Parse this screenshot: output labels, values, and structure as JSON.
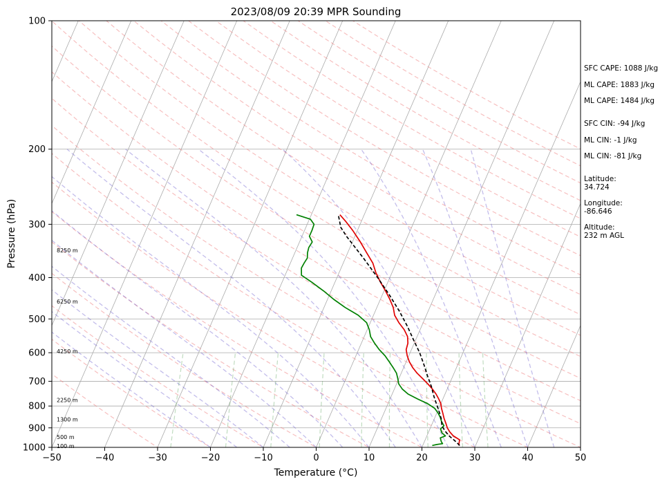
{
  "chart_data": {
    "type": "line",
    "title": "2023/08/09 20:39 MPR Sounding",
    "xlabel": "Temperature (°C)",
    "ylabel": "Pressure (hPa)",
    "xlim": [
      -50,
      50
    ],
    "ylim": [
      1000,
      100
    ],
    "y_scale": "log",
    "x_ticks": [
      "−50",
      "−40",
      "−30",
      "−20",
      "−10",
      "0",
      "10",
      "20",
      "30",
      "40",
      "50"
    ],
    "y_ticks": [
      {
        "p": 100,
        "label": "100"
      },
      {
        "p": 200,
        "label": "200"
      },
      {
        "p": 300,
        "label": "300"
      },
      {
        "p": 400,
        "label": "400"
      },
      {
        "p": 500,
        "label": "500"
      },
      {
        "p": 600,
        "label": "600"
      },
      {
        "p": 700,
        "label": "700"
      },
      {
        "p": 800,
        "label": "800"
      },
      {
        "p": 900,
        "label": "900"
      },
      {
        "p": 1000,
        "label": "1000"
      }
    ],
    "grid": true,
    "skew_t": true,
    "height_labels": [
      {
        "p": 345,
        "label": "8250 m"
      },
      {
        "p": 455,
        "label": "6250 m"
      },
      {
        "p": 595,
        "label": "4250 m"
      },
      {
        "p": 775,
        "label": "2250 m"
      },
      {
        "p": 860,
        "label": "1300 m"
      },
      {
        "p": 945,
        "label": "500 m"
      },
      {
        "p": 992,
        "label": "100 m"
      }
    ],
    "series": [
      {
        "color": "#e00000",
        "points": [
          [
            26.8,
            990
          ],
          [
            26.5,
            960
          ],
          [
            25.0,
            940
          ],
          [
            24.0,
            920
          ],
          [
            23.2,
            900
          ],
          [
            22.6,
            880
          ],
          [
            21.8,
            855
          ],
          [
            21.1,
            830
          ],
          [
            20.5,
            810
          ],
          [
            20.0,
            790
          ],
          [
            19.2,
            770
          ],
          [
            18.3,
            750
          ],
          [
            17.2,
            730
          ],
          [
            15.9,
            710
          ],
          [
            14.5,
            690
          ],
          [
            13.0,
            670
          ],
          [
            11.7,
            650
          ],
          [
            10.6,
            630
          ],
          [
            9.7,
            610
          ],
          [
            9.0,
            590
          ],
          [
            8.8,
            570
          ],
          [
            8.2,
            550
          ],
          [
            7.0,
            530
          ],
          [
            5.4,
            510
          ],
          [
            4.0,
            490
          ],
          [
            3.1,
            470
          ],
          [
            1.8,
            450
          ],
          [
            0.3,
            430
          ],
          [
            -1.4,
            410
          ],
          [
            -3.0,
            390
          ],
          [
            -4.4,
            370
          ],
          [
            -6.4,
            350
          ],
          [
            -8.5,
            330
          ],
          [
            -10.9,
            310
          ],
          [
            -13.0,
            295
          ],
          [
            -14.6,
            285
          ]
        ]
      },
      {
        "color": "#008000",
        "points": [
          [
            21.8,
            990
          ],
          [
            22.5,
            985
          ],
          [
            23.6,
            980
          ],
          [
            23.2,
            970
          ],
          [
            22.7,
            950
          ],
          [
            23.5,
            940
          ],
          [
            22.6,
            925
          ],
          [
            22.0,
            905
          ],
          [
            22.4,
            890
          ],
          [
            21.6,
            870
          ],
          [
            21.0,
            850
          ],
          [
            20.2,
            830
          ],
          [
            19.2,
            810
          ],
          [
            17.5,
            790
          ],
          [
            15.2,
            770
          ],
          [
            13.0,
            750
          ],
          [
            11.5,
            730
          ],
          [
            10.4,
            710
          ],
          [
            9.8,
            690
          ],
          [
            9.1,
            670
          ],
          [
            8.0,
            650
          ],
          [
            6.8,
            630
          ],
          [
            5.5,
            610
          ],
          [
            3.9,
            590
          ],
          [
            2.5,
            570
          ],
          [
            1.2,
            550
          ],
          [
            0.4,
            530
          ],
          [
            -0.7,
            510
          ],
          [
            -2.9,
            490
          ],
          [
            -6.0,
            470
          ],
          [
            -8.8,
            450
          ],
          [
            -11.4,
            430
          ],
          [
            -14.4,
            410
          ],
          [
            -16.9,
            395
          ],
          [
            -17.5,
            380
          ],
          [
            -17.4,
            370
          ],
          [
            -17.2,
            360
          ],
          [
            -17.6,
            350
          ],
          [
            -17.8,
            340
          ],
          [
            -17.6,
            330
          ],
          [
            -18.6,
            320
          ],
          [
            -18.6,
            310
          ],
          [
            -18.7,
            300
          ],
          [
            -19.8,
            292
          ],
          [
            -22.8,
            285
          ]
        ]
      },
      {
        "color": "#000000",
        "dashed": true,
        "points": [
          [
            27.0,
            990
          ],
          [
            25.7,
            965
          ],
          [
            24.2,
            940
          ],
          [
            23.0,
            915
          ],
          [
            22.0,
            890
          ],
          [
            21.4,
            860
          ],
          [
            20.5,
            830
          ],
          [
            19.5,
            800
          ],
          [
            18.1,
            760
          ],
          [
            16.8,
            720
          ],
          [
            15.2,
            680
          ],
          [
            13.6,
            640
          ],
          [
            11.8,
            600
          ],
          [
            9.6,
            560
          ],
          [
            7.3,
            520
          ],
          [
            4.6,
            480
          ],
          [
            1.4,
            440
          ],
          [
            -2.3,
            400
          ],
          [
            -6.6,
            360
          ],
          [
            -11.6,
            320
          ],
          [
            -13.4,
            305
          ],
          [
            -14.9,
            285
          ]
        ]
      }
    ],
    "indices": {
      "sfc_cape": "SFC CAPE: 1088 J/kg",
      "ml_cape_1": "ML CAPE: 1883 J/kg",
      "ml_cape_2": "ML CAPE: 1484 J/kg",
      "sfc_cin": "SFC CIN: -94 J/kg",
      "ml_cin_1": "ML CIN: -1 J/kg",
      "ml_cin_2": "ML CIN: -81 J/kg"
    },
    "location": {
      "latitude_label": "Latitude:",
      "latitude": "34.724",
      "longitude_label": "Longitude:",
      "longitude": "-86.646",
      "altitude_label": "Altitude:",
      "altitude": "232 m AGL"
    }
  }
}
